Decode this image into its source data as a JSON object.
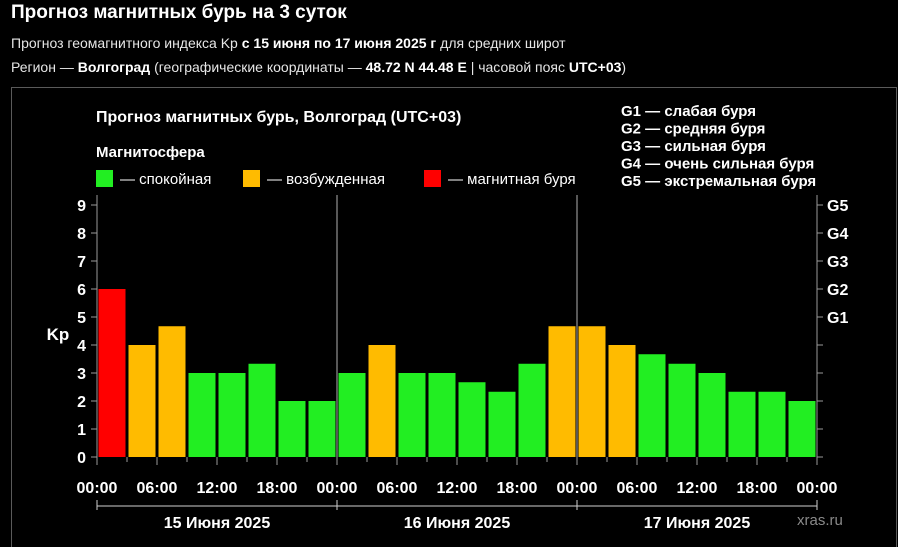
{
  "header": {
    "title": "Прогноз магнитных бурь на 3 суток",
    "line1_prefix": "Прогноз геомагнитного индекса Kp ",
    "line1_period": "с 15 июня по 17 июня 2025 г",
    "line1_suffix": " для средних широт",
    "line2_prefix": "Регион — ",
    "line2_region": "Волгоград",
    "line2_mid": " (географические координаты — ",
    "line2_coords": "48.72 N 44.48 E",
    "line2_sep": " | часовой пояс ",
    "line2_tz": "UTC+03",
    "line2_end": ")"
  },
  "credit": "xras.ru",
  "colors": {
    "quiet": "#22ee22",
    "active": "#ffbb00",
    "storm": "#ff0000",
    "background": "#000000",
    "grid": "#9a9a9a"
  },
  "chart_data": {
    "type": "bar",
    "title": "Прогноз магнитных бурь, Волгоград (UTC+03)",
    "legend_title": "Магнитосфера",
    "legend": [
      {
        "key": "quiet",
        "label": "— спокойная"
      },
      {
        "key": "active",
        "label": "— возбужденная"
      },
      {
        "key": "storm",
        "label": "— магнитная буря"
      }
    ],
    "storm_scale": [
      "G1 — слабая буря",
      "G2 — средняя буря",
      "G3 — сильная буря",
      "G4 — очень сильная буря",
      "G5 — экстремальная буря"
    ],
    "ylabel": "Kp",
    "ylim": [
      0,
      9
    ],
    "y_ticks": [
      "0",
      "1",
      "2",
      "3",
      "4",
      "5",
      "6",
      "7",
      "8",
      "9"
    ],
    "right_ticks": [
      {
        "kp": 5,
        "label": "G1"
      },
      {
        "kp": 6,
        "label": "G2"
      },
      {
        "kp": 7,
        "label": "G3"
      },
      {
        "kp": 8,
        "label": "G4"
      },
      {
        "kp": 9,
        "label": "G5"
      }
    ],
    "x_ticks": [
      "00:00",
      "06:00",
      "12:00",
      "18:00",
      "00:00",
      "06:00",
      "12:00",
      "18:00",
      "00:00",
      "06:00",
      "12:00",
      "18:00",
      "00:00"
    ],
    "days": [
      "15 Июня 2025",
      "16 Июня 2025",
      "17 Июня 2025"
    ],
    "values": [
      6.0,
      4.0,
      4.67,
      3.0,
      3.0,
      3.33,
      2.0,
      2.0,
      3.0,
      4.0,
      3.0,
      3.0,
      2.67,
      2.33,
      3.33,
      4.67,
      4.67,
      4.0,
      3.67,
      3.33,
      3.0,
      2.33,
      2.33,
      2.0
    ],
    "levels": [
      "storm",
      "active",
      "active",
      "quiet",
      "quiet",
      "quiet",
      "quiet",
      "quiet",
      "quiet",
      "active",
      "quiet",
      "quiet",
      "quiet",
      "quiet",
      "quiet",
      "active",
      "active",
      "active",
      "quiet",
      "quiet",
      "quiet",
      "quiet",
      "quiet",
      "quiet"
    ]
  }
}
